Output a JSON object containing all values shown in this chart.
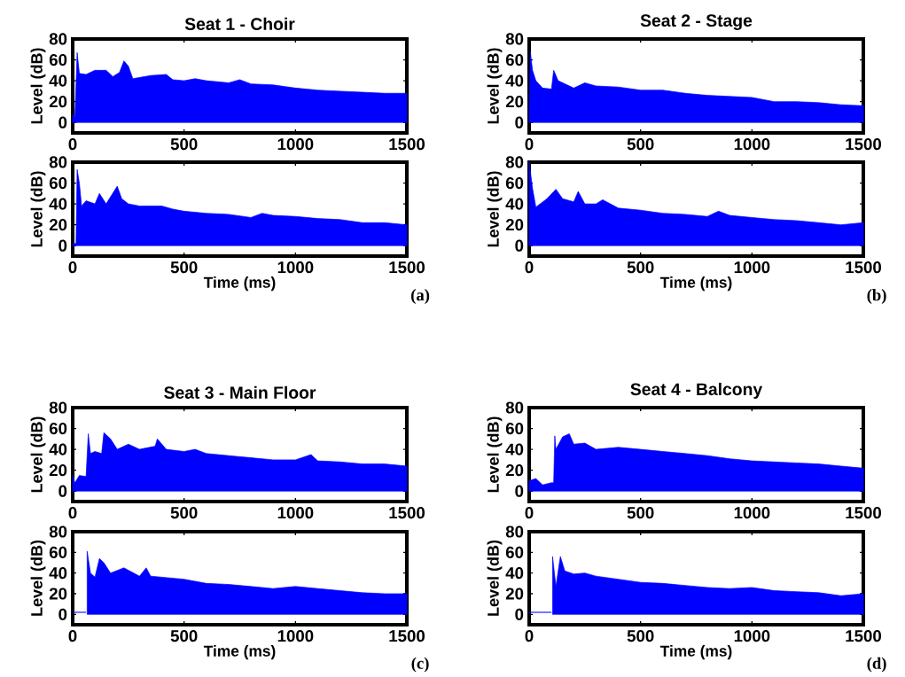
{
  "chart_data": [
    {
      "type": "area",
      "title": "Seat 1 - Choir",
      "ylabel": "Level (dB)",
      "xlim": [
        0,
        1500
      ],
      "ylim": [
        -10,
        80
      ],
      "xticks": [
        0,
        500,
        1000,
        1500
      ],
      "yticks": [
        0,
        20,
        40,
        60,
        80
      ],
      "series": [
        {
          "color": "#0000ff",
          "x": [
            0,
            10,
            20,
            30,
            60,
            100,
            150,
            180,
            210,
            230,
            250,
            270,
            350,
            420,
            450,
            500,
            550,
            600,
            700,
            750,
            800,
            900,
            1000,
            1100,
            1200,
            1300,
            1400,
            1500
          ],
          "values": [
            8,
            5,
            67,
            47,
            46,
            50,
            50,
            44,
            48,
            59,
            54,
            42,
            45,
            46,
            41,
            40,
            42,
            40,
            38,
            41,
            37,
            36,
            33,
            31,
            30,
            29,
            28,
            28
          ]
        }
      ]
    },
    {
      "type": "area",
      "xlabel": "Time (ms)",
      "ylabel": "Level (dB)",
      "annotations": [
        "(a)"
      ],
      "xlim": [
        0,
        1500
      ],
      "ylim": [
        -10,
        80
      ],
      "xticks": [
        0,
        500,
        1000,
        1500
      ],
      "yticks": [
        0,
        20,
        40,
        60,
        80
      ],
      "series": [
        {
          "color": "#0000ff",
          "x": [
            0,
            15,
            20,
            30,
            40,
            60,
            100,
            120,
            150,
            200,
            220,
            250,
            300,
            400,
            450,
            500,
            600,
            700,
            800,
            850,
            900,
            1000,
            1100,
            1200,
            1300,
            1400,
            1500
          ],
          "values": [
            2,
            2,
            73,
            60,
            38,
            43,
            40,
            50,
            40,
            57,
            45,
            40,
            38,
            38,
            35,
            33,
            31,
            30,
            27,
            31,
            29,
            28,
            26,
            25,
            22,
            22,
            20
          ]
        }
      ]
    },
    {
      "type": "area",
      "title": "Seat 2 - Stage",
      "ylabel": "Level (dB)",
      "xlim": [
        0,
        1500
      ],
      "ylim": [
        -10,
        80
      ],
      "xticks": [
        0,
        500,
        1000,
        1500
      ],
      "yticks": [
        0,
        20,
        40,
        60,
        80
      ],
      "series": [
        {
          "color": "#0000ff",
          "x": [
            0,
            5,
            15,
            30,
            60,
            100,
            110,
            130,
            200,
            250,
            300,
            400,
            500,
            600,
            700,
            800,
            900,
            1000,
            1100,
            1200,
            1300,
            1400,
            1500
          ],
          "values": [
            10,
            68,
            50,
            40,
            33,
            32,
            50,
            40,
            33,
            38,
            35,
            34,
            31,
            31,
            28,
            26,
            25,
            24,
            20,
            20,
            19,
            17,
            16
          ]
        }
      ]
    },
    {
      "type": "area",
      "xlabel": "Time (ms)",
      "ylabel": "Level (dB)",
      "annotations": [
        "(b)"
      ],
      "xlim": [
        0,
        1500
      ],
      "ylim": [
        -10,
        80
      ],
      "xticks": [
        0,
        500,
        1000,
        1500
      ],
      "yticks": [
        0,
        20,
        40,
        60,
        80
      ],
      "series": [
        {
          "color": "#0000ff",
          "x": [
            0,
            15,
            30,
            80,
            120,
            150,
            200,
            220,
            250,
            300,
            330,
            400,
            500,
            600,
            700,
            800,
            850,
            900,
            1000,
            1100,
            1200,
            1300,
            1400,
            1500
          ],
          "values": [
            80,
            55,
            37,
            45,
            54,
            45,
            42,
            52,
            40,
            40,
            44,
            36,
            34,
            31,
            30,
            28,
            33,
            29,
            27,
            25,
            24,
            22,
            20,
            22
          ]
        }
      ]
    },
    {
      "type": "area",
      "title": "Seat 3 - Main Floor",
      "ylabel": "Level (dB)",
      "xlim": [
        0,
        1500
      ],
      "ylim": [
        -10,
        80
      ],
      "xticks": [
        0,
        500,
        1000,
        1500
      ],
      "yticks": [
        0,
        20,
        40,
        60,
        80
      ],
      "series": [
        {
          "color": "#0000ff",
          "x": [
            0,
            10,
            30,
            60,
            70,
            80,
            100,
            130,
            140,
            170,
            200,
            250,
            300,
            370,
            380,
            420,
            500,
            550,
            600,
            700,
            800,
            900,
            1000,
            1070,
            1100,
            1200,
            1300,
            1400,
            1500
          ],
          "values": [
            15,
            8,
            15,
            14,
            55,
            36,
            38,
            36,
            56,
            50,
            40,
            45,
            40,
            43,
            50,
            40,
            38,
            40,
            36,
            34,
            32,
            30,
            30,
            35,
            29,
            28,
            26,
            26,
            24
          ]
        }
      ]
    },
    {
      "type": "area",
      "xlabel": "Time (ms)",
      "ylabel": "Level (dB)",
      "annotations": [
        "(c)"
      ],
      "xlim": [
        0,
        1500
      ],
      "ylim": [
        -10,
        80
      ],
      "xticks": [
        0,
        500,
        1000,
        1500
      ],
      "yticks": [
        0,
        20,
        40,
        60,
        80
      ],
      "series": [
        {
          "type": "line",
          "color": "#0000ff",
          "x": [
            0,
            60
          ],
          "values": [
            2,
            2
          ]
        },
        {
          "color": "#0000ff",
          "x": [
            65,
            80,
            100,
            120,
            140,
            170,
            230,
            300,
            330,
            350,
            500,
            600,
            700,
            800,
            900,
            1000,
            1100,
            1200,
            1300,
            1400,
            1500
          ],
          "values": [
            61,
            40,
            36,
            54,
            50,
            40,
            45,
            37,
            45,
            37,
            34,
            30,
            29,
            27,
            25,
            27,
            25,
            23,
            21,
            20,
            20
          ]
        }
      ]
    },
    {
      "type": "area",
      "title": "Seat 4 - Balcony",
      "ylabel": "Level (dB)",
      "xlim": [
        0,
        1500
      ],
      "ylim": [
        -10,
        80
      ],
      "xticks": [
        0,
        500,
        1000,
        1500
      ],
      "yticks": [
        0,
        20,
        40,
        60,
        80
      ],
      "series": [
        {
          "color": "#0000ff",
          "x": [
            0,
            30,
            60,
            100,
            110,
            115,
            120,
            150,
            180,
            200,
            250,
            300,
            400,
            500,
            600,
            700,
            800,
            900,
            1000,
            1100,
            1200,
            1300,
            1400,
            1500
          ],
          "values": [
            10,
            12,
            6,
            8,
            8,
            53,
            40,
            52,
            55,
            45,
            46,
            40,
            42,
            40,
            38,
            36,
            34,
            31,
            29,
            28,
            27,
            26,
            24,
            22
          ]
        }
      ]
    },
    {
      "type": "area",
      "xlabel": "Time (ms)",
      "ylabel": "Level (dB)",
      "annotations": [
        "(d)"
      ],
      "xlim": [
        0,
        1500
      ],
      "ylim": [
        -10,
        80
      ],
      "xticks": [
        0,
        500,
        1000,
        1500
      ],
      "yticks": [
        0,
        20,
        40,
        60,
        80
      ],
      "series": [
        {
          "type": "line",
          "color": "#0000ff",
          "x": [
            0,
            100
          ],
          "values": [
            2,
            2
          ]
        },
        {
          "color": "#0000ff",
          "x": [
            105,
            120,
            140,
            160,
            200,
            250,
            300,
            400,
            500,
            600,
            700,
            800,
            900,
            1000,
            1100,
            1200,
            1300,
            1400,
            1500
          ],
          "values": [
            56,
            27,
            56,
            42,
            39,
            40,
            37,
            34,
            31,
            30,
            28,
            26,
            25,
            26,
            23,
            22,
            21,
            18,
            20
          ]
        }
      ]
    }
  ]
}
